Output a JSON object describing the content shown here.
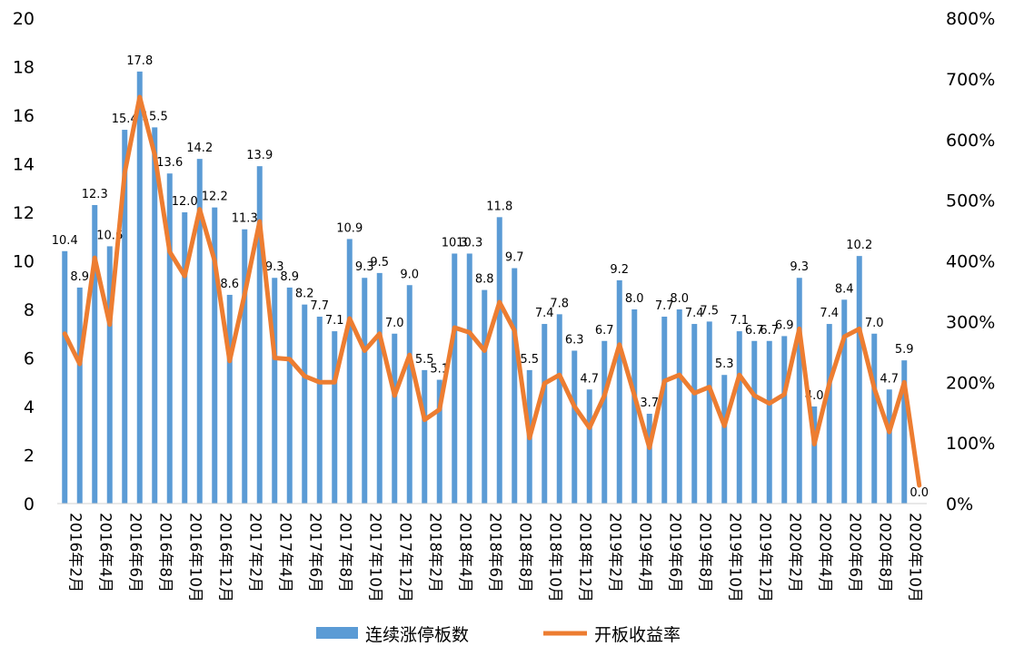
{
  "chart_data": {
    "type": "bar+line",
    "categories": [
      "2016年2月",
      "2016年3月",
      "2016年4月",
      "2016年5月",
      "2016年6月",
      "2016年7月",
      "2016年8月",
      "2016年9月",
      "2016年10月",
      "2016年11月",
      "2016年12月",
      "2017年1月",
      "2017年2月",
      "2017年3月",
      "2017年4月",
      "2017年5月",
      "2017年6月",
      "2017年7月",
      "2017年8月",
      "2017年9月",
      "2017年10月",
      "2017年11月",
      "2017年12月",
      "2018年1月",
      "2018年2月",
      "2018年3月",
      "2018年4月",
      "2018年5月",
      "2018年6月",
      "2018年7月",
      "2018年8月",
      "2018年9月",
      "2018年10月",
      "2018年11月",
      "2018年12月",
      "2019年1月",
      "2019年2月",
      "2019年3月",
      "2019年4月",
      "2019年5月",
      "2019年6月",
      "2019年7月",
      "2019年8月",
      "2019年9月",
      "2019年10月",
      "2019年11月",
      "2019年12月",
      "2020年1月",
      "2020年2月",
      "2020年3月",
      "2020年4月",
      "2020年5月",
      "2020年6月",
      "2020年7月",
      "2020年8月",
      "2020年9月",
      "2020年10月",
      "2020年11月"
    ],
    "series": [
      {
        "name": "连续涨停板数",
        "type": "bar",
        "axis": "left",
        "color": "#5B9BD5",
        "values": [
          10.4,
          8.9,
          12.3,
          10.6,
          15.4,
          17.8,
          15.5,
          13.6,
          12.0,
          14.2,
          12.2,
          8.6,
          11.3,
          13.9,
          9.3,
          8.9,
          8.2,
          7.7,
          7.1,
          10.9,
          9.3,
          9.5,
          7.0,
          9.0,
          5.5,
          5.1,
          10.3,
          10.3,
          8.8,
          11.8,
          9.7,
          5.5,
          7.4,
          7.8,
          6.3,
          4.7,
          6.7,
          9.2,
          8.0,
          3.7,
          7.7,
          8.0,
          7.4,
          7.5,
          5.3,
          7.1,
          6.7,
          6.7,
          6.9,
          9.3,
          4.0,
          7.4,
          8.4,
          10.2,
          7.0,
          4.7,
          5.9,
          0.0
        ]
      },
      {
        "name": "开板收益率",
        "type": "line",
        "axis": "right",
        "color": "#ED7D31",
        "values": [
          280,
          230,
          405,
          295,
          545,
          670,
          575,
          415,
          375,
          485,
          400,
          235,
          345,
          465,
          240,
          238,
          210,
          200,
          200,
          305,
          252,
          280,
          178,
          245,
          138,
          155,
          290,
          282,
          252,
          332,
          285,
          108,
          198,
          212,
          160,
          125,
          178,
          262,
          178,
          92,
          202,
          212,
          182,
          192,
          128,
          212,
          178,
          165,
          180,
          288,
          98,
          198,
          275,
          288,
          190,
          118,
          200,
          30
        ]
      }
    ],
    "ylim_left": [
      0,
      20
    ],
    "ylim_right": [
      0,
      800
    ],
    "yticks_left": [
      "0",
      "2",
      "4",
      "6",
      "8",
      "10",
      "12",
      "14",
      "16",
      "18",
      "20"
    ],
    "yticks_right": [
      "0%",
      "100%",
      "200%",
      "300%",
      "400%",
      "500%",
      "600%",
      "700%",
      "800%"
    ],
    "grid": false,
    "legend": "bottom",
    "xlabel": "",
    "ylabel": ""
  }
}
